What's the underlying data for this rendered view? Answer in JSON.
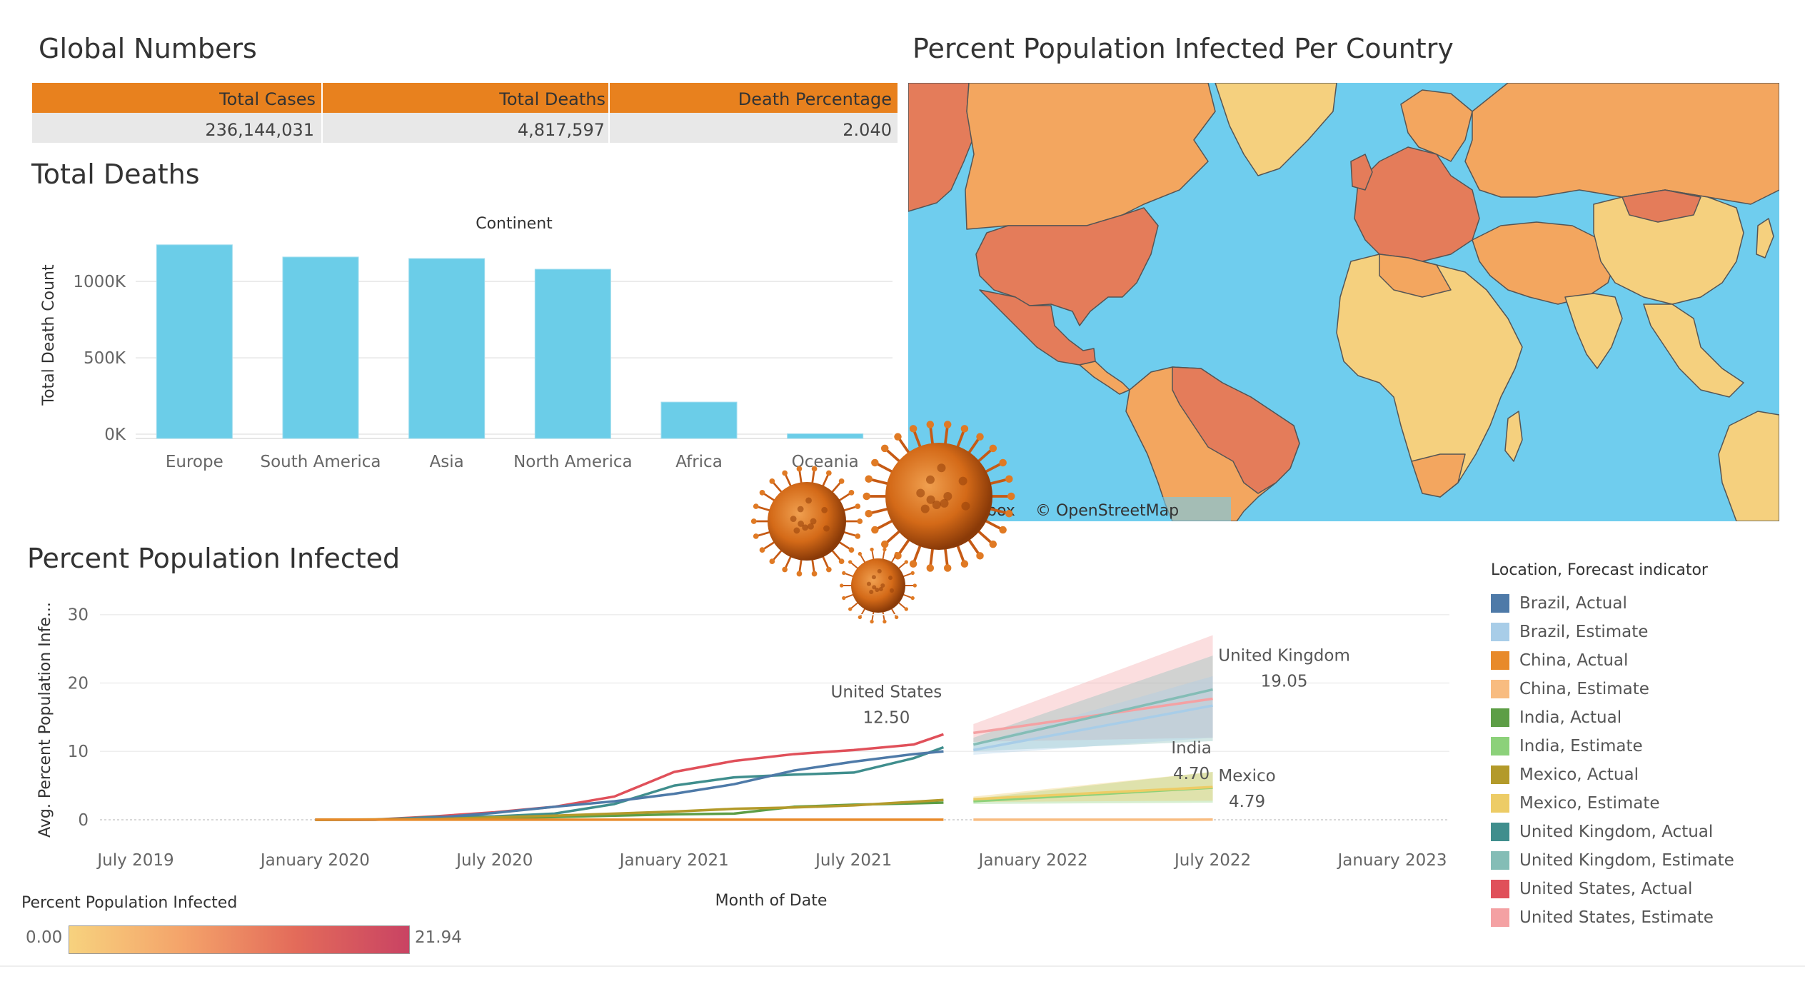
{
  "global_numbers": {
    "title": "Global Numbers",
    "headers": [
      "Total Cases",
      "Total Deaths",
      "Death Percentage"
    ],
    "values": [
      "236,144,031",
      "4,817,597",
      "2.040"
    ]
  },
  "map": {
    "title": "Percent Population Infected Per Country",
    "attribution": "© OpenStreetMap",
    "attribution_partial": "box",
    "colors": {
      "ocean": "#6FCDEE",
      "high": "#E47C5A",
      "mid": "#F3A65F",
      "low": "#F5D07E",
      "border": "#555555"
    }
  },
  "chart_data": [
    {
      "type": "bar",
      "title": "Total Deaths",
      "header": "Continent",
      "ylabel": "Total Death Count",
      "categories": [
        "Europe",
        "South America",
        "Asia",
        "North America",
        "Africa",
        "Oceania"
      ],
      "values": [
        1240000,
        1160000,
        1150000,
        1080000,
        210000,
        2600
      ],
      "ylim": [
        0,
        1300000
      ],
      "yticks": [
        {
          "value": 0,
          "label": "0K"
        },
        {
          "value": 500000,
          "label": "500K"
        },
        {
          "value": 1000000,
          "label": "1000K"
        }
      ],
      "color": "#6BCDE8",
      "grid": true
    },
    {
      "type": "line",
      "title": "Percent Population Infected",
      "ylabel": "Avg. Percent Population Infe...",
      "xlabel": "Month of Date",
      "x_range": [
        "2019-05",
        "2023-01"
      ],
      "ylim": [
        0,
        33
      ],
      "yticks": [
        0,
        10,
        20,
        30
      ],
      "xticks": [
        {
          "date": "2019-07",
          "label": "July 2019"
        },
        {
          "date": "2020-01",
          "label": "January 2020"
        },
        {
          "date": "2020-07",
          "label": "July 2020"
        },
        {
          "date": "2021-01",
          "label": "January 2021"
        },
        {
          "date": "2021-07",
          "label": "July 2021"
        },
        {
          "date": "2022-01",
          "label": "January 2022"
        },
        {
          "date": "2022-07",
          "label": "July 2022"
        },
        {
          "date": "2023-01",
          "label": "January 2023"
        }
      ],
      "series": [
        {
          "name": "United States, Actual",
          "color": "#E0505A",
          "x": [
            "2020-01",
            "2020-03",
            "2020-05",
            "2020-07",
            "2020-09",
            "2020-11",
            "2021-01",
            "2021-03",
            "2021-05",
            "2021-07",
            "2021-09",
            "2021-10"
          ],
          "y": [
            0,
            0.02,
            0.5,
            1.1,
            1.9,
            3.4,
            7.0,
            8.6,
            9.6,
            10.2,
            11.0,
            12.5
          ]
        },
        {
          "name": "United Kingdom, Actual",
          "color": "#3F8E8D",
          "x": [
            "2020-01",
            "2020-03",
            "2020-05",
            "2020-07",
            "2020-09",
            "2020-11",
            "2021-01",
            "2021-03",
            "2021-05",
            "2021-07",
            "2021-09",
            "2021-10"
          ],
          "y": [
            0,
            0.01,
            0.4,
            0.5,
            0.9,
            2.3,
            5.0,
            6.2,
            6.6,
            6.9,
            9.0,
            10.6
          ]
        },
        {
          "name": "Brazil, Actual",
          "color": "#4E7AA8",
          "x": [
            "2020-01",
            "2020-03",
            "2020-05",
            "2020-07",
            "2020-09",
            "2020-11",
            "2021-01",
            "2021-03",
            "2021-05",
            "2021-07",
            "2021-09",
            "2021-10"
          ],
          "y": [
            0,
            0,
            0.3,
            1.0,
            1.9,
            2.7,
            3.8,
            5.2,
            7.2,
            8.5,
            9.6,
            10.0
          ]
        },
        {
          "name": "India, Actual",
          "color": "#5D9E46",
          "x": [
            "2020-01",
            "2020-05",
            "2020-09",
            "2021-01",
            "2021-03",
            "2021-05",
            "2021-07",
            "2021-10"
          ],
          "y": [
            0,
            0.05,
            0.4,
            0.8,
            0.9,
            1.9,
            2.2,
            2.5
          ]
        },
        {
          "name": "Mexico, Actual",
          "color": "#B39A2A",
          "x": [
            "2020-01",
            "2020-05",
            "2020-09",
            "2021-01",
            "2021-03",
            "2021-05",
            "2021-07",
            "2021-10"
          ],
          "y": [
            0,
            0.1,
            0.6,
            1.2,
            1.6,
            1.8,
            2.1,
            2.9
          ]
        },
        {
          "name": "China, Actual",
          "color": "#E88A2A",
          "x": [
            "2020-01",
            "2021-10"
          ],
          "y": [
            0.01,
            0.01
          ]
        },
        {
          "name": "United States, Estimate",
          "color": "#F4A1A3",
          "x": [
            "2021-11",
            "2022-07"
          ],
          "y": [
            12.7,
            17.7
          ],
          "band": [
            [
              11.4,
              14.0
            ],
            [
              12.0,
              27.0
            ]
          ]
        },
        {
          "name": "United Kingdom, Estimate",
          "color": "#84BDB6",
          "x": [
            "2021-11",
            "2022-07"
          ],
          "y": [
            11.0,
            19.05
          ],
          "band": [
            [
              10.0,
              12.0
            ],
            [
              11.5,
              24.0
            ]
          ]
        },
        {
          "name": "Brazil, Estimate",
          "color": "#A8CDE8",
          "x": [
            "2021-11",
            "2022-07"
          ],
          "y": [
            10.2,
            16.7
          ],
          "band": [
            [
              9.5,
              11.0
            ],
            [
              12.0,
              21.0
            ]
          ]
        },
        {
          "name": "India, Estimate",
          "color": "#8CD17A",
          "x": [
            "2021-11",
            "2022-07"
          ],
          "y": [
            2.7,
            4.7
          ],
          "band": [
            [
              2.3,
              3.1
            ],
            [
              2.5,
              7.0
            ]
          ]
        },
        {
          "name": "Mexico, Estimate",
          "color": "#EDCC66",
          "x": [
            "2021-11",
            "2022-07"
          ],
          "y": [
            3.0,
            4.79
          ],
          "band": [
            [
              2.6,
              3.4
            ],
            [
              2.8,
              7.0
            ]
          ]
        },
        {
          "name": "China, Estimate",
          "color": "#F8BC80",
          "x": [
            "2021-11",
            "2022-07"
          ],
          "y": [
            0.01,
            0.02
          ]
        }
      ],
      "annotations": [
        {
          "name": "United States",
          "value": "12.50",
          "x": "2021-10",
          "y": 12.5
        },
        {
          "name": "United Kingdom",
          "value": "19.05",
          "x": "2022-07",
          "y": 19.05
        },
        {
          "name": "India",
          "value": "4.70",
          "x": "2022-07",
          "y": 4.7
        },
        {
          "name": "Mexico",
          "value": "4.79",
          "x": "2022-07",
          "y": 4.79
        }
      ],
      "legend": {
        "title": "Location, Forecast indicator",
        "placement": "right",
        "items": [
          {
            "label": "Brazil, Actual",
            "color": "#4E7AA8"
          },
          {
            "label": "Brazil, Estimate",
            "color": "#A8CDE8"
          },
          {
            "label": "China, Actual",
            "color": "#E88A2A"
          },
          {
            "label": "China, Estimate",
            "color": "#F8BC80"
          },
          {
            "label": "India, Actual",
            "color": "#5D9E46"
          },
          {
            "label": "India, Estimate",
            "color": "#8CD17A"
          },
          {
            "label": "Mexico, Actual",
            "color": "#B39A2A"
          },
          {
            "label": "Mexico, Estimate",
            "color": "#EDCC66"
          },
          {
            "label": "United Kingdom, Actual",
            "color": "#3F8E8D"
          },
          {
            "label": "United Kingdom, Estimate",
            "color": "#84BDB6"
          },
          {
            "label": "United States, Actual",
            "color": "#E0505A"
          },
          {
            "label": "United States, Estimate",
            "color": "#F4A1A3"
          }
        ]
      }
    }
  ],
  "color_scale": {
    "title": "Percent Population Infected",
    "min": "0.00",
    "max": "21.94"
  }
}
